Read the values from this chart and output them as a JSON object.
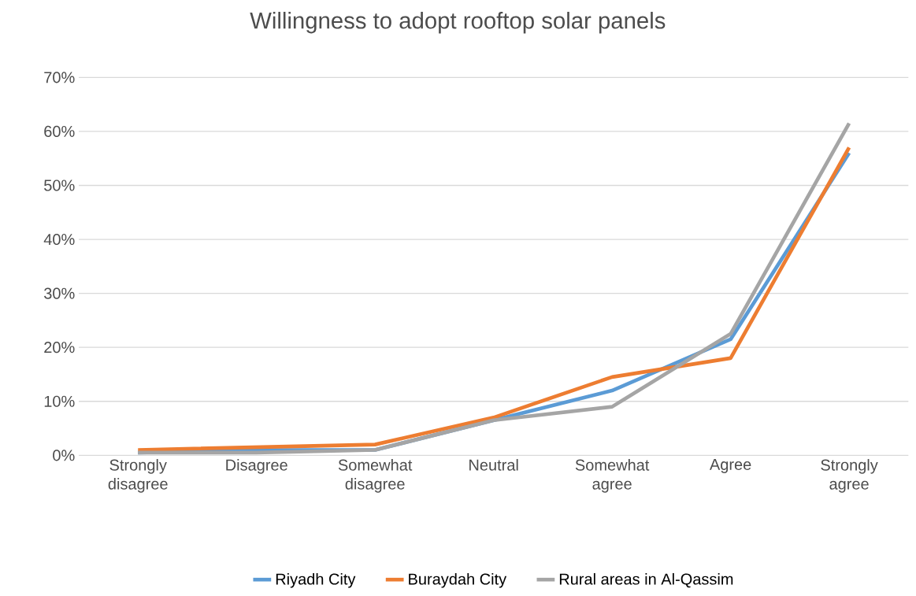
{
  "chart_data": {
    "type": "line",
    "title": "Willingness to adopt rooftop solar panels",
    "categories": [
      "Strongly disagree",
      "Disagree",
      "Somewhat disagree",
      "Neutral",
      "Somewhat agree",
      "Agree",
      "Strongly agree"
    ],
    "series": [
      {
        "name": "Riyadh City",
        "color": "#5b9bd5",
        "values": [
          0.5,
          1,
          1,
          6.5,
          12,
          21.5,
          56
        ]
      },
      {
        "name": "Buraydah City",
        "color": "#ed7d31",
        "values": [
          1,
          1.5,
          2,
          7,
          14.5,
          18,
          57
        ]
      },
      {
        "name": "Rural areas in Al-Qassim",
        "color": "#a5a5a5",
        "values": [
          0.5,
          0.5,
          1,
          6.5,
          9,
          22.5,
          61.5
        ]
      }
    ],
    "ylim": [
      0,
      70
    ],
    "yticks": [
      {
        "value": 0,
        "label": "0%"
      },
      {
        "value": 10,
        "label": "10%"
      },
      {
        "value": 20,
        "label": "20%"
      },
      {
        "value": 30,
        "label": "30%"
      },
      {
        "value": 40,
        "label": "40%"
      },
      {
        "value": 50,
        "label": "50%"
      },
      {
        "value": 60,
        "label": "60%"
      },
      {
        "value": 70,
        "label": "70%"
      }
    ],
    "grid": "y",
    "legend": "bottom",
    "marker": "none",
    "line_style": "solid"
  }
}
